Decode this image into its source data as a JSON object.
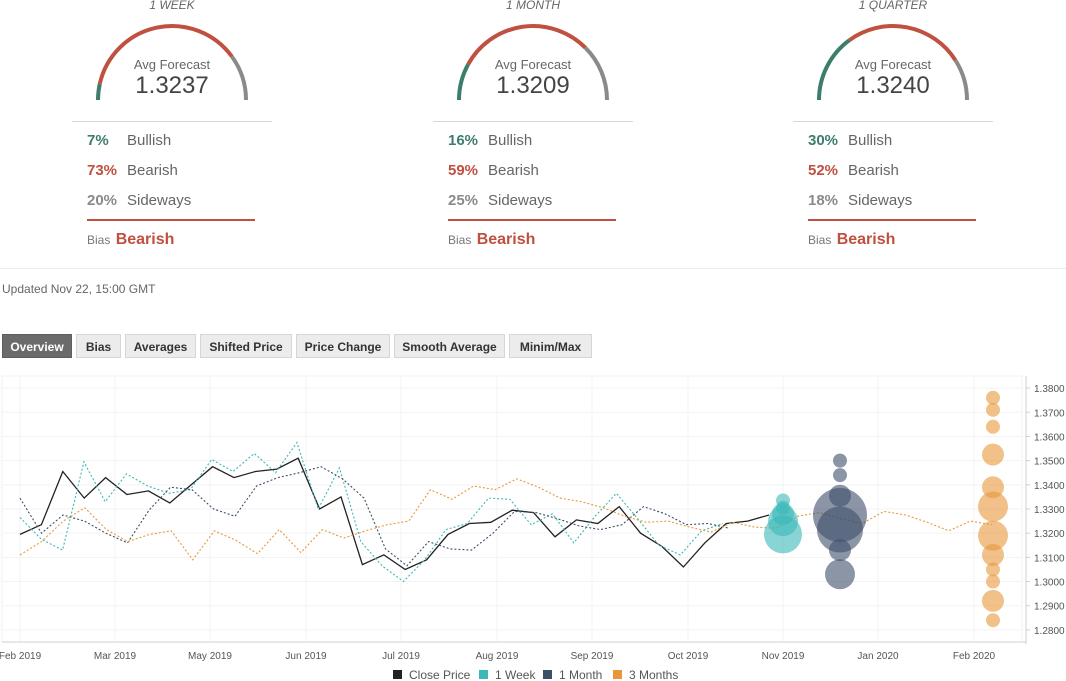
{
  "panels": [
    {
      "period": "1 WEEK",
      "avg_label": "Avg Forecast",
      "avg_value": "1.3237",
      "bullish_pct": "7%",
      "bullish_label": "Bullish",
      "bearish_pct": "73%",
      "bearish_label": "Bearish",
      "sideways_pct": "20%",
      "sideways_label": "Sideways",
      "bias_label": "Bias",
      "bias_value": "Bearish",
      "bullish": 7,
      "bearish": 73,
      "sideways": 20
    },
    {
      "period": "1 MONTH",
      "avg_label": "Avg Forecast",
      "avg_value": "1.3209",
      "bullish_pct": "16%",
      "bullish_label": "Bullish",
      "bearish_pct": "59%",
      "bearish_label": "Bearish",
      "sideways_pct": "25%",
      "sideways_label": "Sideways",
      "bias_label": "Bias",
      "bias_value": "Bearish",
      "bullish": 16,
      "bearish": 59,
      "sideways": 25
    },
    {
      "period": "1 QUARTER",
      "avg_label": "Avg Forecast",
      "avg_value": "1.3240",
      "bullish_pct": "30%",
      "bullish_label": "Bullish",
      "bearish_pct": "52%",
      "bearish_label": "Bearish",
      "sideways_pct": "18%",
      "sideways_label": "Sideways",
      "bias_label": "Bias",
      "bias_value": "Bearish",
      "bullish": 30,
      "bearish": 52,
      "sideways": 18
    }
  ],
  "colors": {
    "bullish": "#3d7d6e",
    "bearish": "#c0503f",
    "sideways": "#8a8a8a",
    "close": "#222222",
    "week": "#3bb8b8",
    "month": "#3d4f6b",
    "quarter": "#e8973a"
  },
  "updated": "Updated Nov 22, 15:00 GMT",
  "tabs": [
    "Overview",
    "Bias",
    "Averages",
    "Shifted Price",
    "Price Change",
    "Smooth Average",
    "Minim/Max"
  ],
  "active_tab": "Overview",
  "chart_data": {
    "type": "line",
    "x_ticks": [
      "Feb 2019",
      "Mar 2019",
      "May 2019",
      "Jun 2019",
      "Jul 2019",
      "Aug 2019",
      "Sep 2019",
      "Oct 2019",
      "Nov 2019",
      "Jan 2020",
      "Feb 2020"
    ],
    "y_ticks": [
      "1.3800",
      "1.3700",
      "1.3600",
      "1.3500",
      "1.3400",
      "1.3300",
      "1.3200",
      "1.3100",
      "1.3000",
      "1.2900",
      "1.2800"
    ],
    "ylim": [
      1.275,
      1.385
    ],
    "legend": [
      "Close Price",
      "1 Week",
      "1 Month",
      "3 Months"
    ],
    "legend_position": "bottom",
    "series": [
      {
        "name": "Close Price",
        "style": "solid",
        "values": [
          [
            0,
            1.3195
          ],
          [
            1,
            1.3235
          ],
          [
            2,
            1.3455
          ],
          [
            3,
            1.3345
          ],
          [
            4,
            1.343
          ],
          [
            5,
            1.336
          ],
          [
            6,
            1.3375
          ],
          [
            7,
            1.3325
          ],
          [
            8,
            1.34
          ],
          [
            9,
            1.3475
          ],
          [
            10,
            1.343
          ],
          [
            11,
            1.3455
          ],
          [
            12,
            1.3465
          ],
          [
            13,
            1.351
          ],
          [
            14,
            1.33
          ],
          [
            15,
            1.335
          ],
          [
            16,
            1.307
          ],
          [
            17,
            1.311
          ],
          [
            18,
            1.305
          ],
          [
            19,
            1.309
          ],
          [
            20,
            1.3195
          ],
          [
            21,
            1.324
          ],
          [
            22,
            1.3245
          ],
          [
            23,
            1.3295
          ],
          [
            24,
            1.3285
          ],
          [
            25,
            1.3185
          ],
          [
            26,
            1.3255
          ],
          [
            27,
            1.324
          ],
          [
            28,
            1.331
          ],
          [
            29,
            1.32
          ],
          [
            30,
            1.3145
          ],
          [
            31,
            1.306
          ],
          [
            32,
            1.316
          ],
          [
            33,
            1.324
          ],
          [
            34,
            1.325
          ],
          [
            35,
            1.3275
          ]
        ]
      },
      {
        "name": "1 Week",
        "style": "dotted",
        "values": [
          [
            0,
            1.3265
          ],
          [
            1,
            1.3175
          ],
          [
            2,
            1.313
          ],
          [
            3,
            1.3495
          ],
          [
            4,
            1.333
          ],
          [
            5,
            1.3445
          ],
          [
            6,
            1.3395
          ],
          [
            7,
            1.3365
          ],
          [
            8,
            1.338
          ],
          [
            9,
            1.3505
          ],
          [
            10,
            1.3455
          ],
          [
            11,
            1.353
          ],
          [
            12,
            1.345
          ],
          [
            13,
            1.3575
          ],
          [
            14,
            1.33
          ],
          [
            15,
            1.347
          ],
          [
            16,
            1.3165
          ],
          [
            17,
            1.3065
          ],
          [
            18,
            1.3
          ],
          [
            19,
            1.309
          ],
          [
            20,
            1.3215
          ],
          [
            21,
            1.324
          ],
          [
            22,
            1.3345
          ],
          [
            23,
            1.334
          ],
          [
            24,
            1.3235
          ],
          [
            25,
            1.328
          ],
          [
            26,
            1.316
          ],
          [
            27,
            1.327
          ],
          [
            28,
            1.3365
          ],
          [
            29,
            1.326
          ],
          [
            30,
            1.315
          ],
          [
            31,
            1.311
          ],
          [
            32,
            1.321
          ],
          [
            33,
            1.324
          ]
        ]
      },
      {
        "name": "1 Month",
        "style": "dotted",
        "values": [
          [
            0,
            1.3345
          ],
          [
            1,
            1.32
          ],
          [
            2,
            1.3275
          ],
          [
            3,
            1.325
          ],
          [
            4,
            1.32
          ],
          [
            5,
            1.316
          ],
          [
            6,
            1.3295
          ],
          [
            7,
            1.339
          ],
          [
            8,
            1.338
          ],
          [
            9,
            1.33
          ],
          [
            10,
            1.327
          ],
          [
            11,
            1.3395
          ],
          [
            12,
            1.343
          ],
          [
            13,
            1.345
          ],
          [
            14,
            1.3475
          ],
          [
            15,
            1.3425
          ],
          [
            16,
            1.3345
          ],
          [
            17,
            1.3135
          ],
          [
            18,
            1.3065
          ],
          [
            19,
            1.3165
          ],
          [
            20,
            1.3135
          ],
          [
            21,
            1.313
          ],
          [
            22,
            1.32
          ],
          [
            23,
            1.329
          ],
          [
            24,
            1.3285
          ],
          [
            25,
            1.326
          ],
          [
            26,
            1.323
          ],
          [
            27,
            1.3215
          ],
          [
            28,
            1.3235
          ],
          [
            29,
            1.331
          ],
          [
            30,
            1.328
          ],
          [
            31,
            1.3235
          ],
          [
            32,
            1.324
          ],
          [
            33,
            1.322
          ]
        ]
      },
      {
        "name": "3 Months",
        "style": "dotted",
        "values": [
          [
            0,
            1.311
          ],
          [
            1,
            1.3165
          ],
          [
            2,
            1.325
          ],
          [
            3,
            1.3305
          ],
          [
            4,
            1.3215
          ],
          [
            5,
            1.3165
          ],
          [
            6,
            1.3195
          ],
          [
            7,
            1.321
          ],
          [
            8,
            1.309
          ],
          [
            9,
            1.321
          ],
          [
            10,
            1.317
          ],
          [
            11,
            1.3115
          ],
          [
            12,
            1.3215
          ],
          [
            13,
            1.312
          ],
          [
            14,
            1.3215
          ],
          [
            15,
            1.318
          ],
          [
            16,
            1.321
          ],
          [
            17,
            1.3235
          ],
          [
            18,
            1.325
          ],
          [
            19,
            1.338
          ],
          [
            20,
            1.334
          ],
          [
            21,
            1.3395
          ],
          [
            22,
            1.338
          ],
          [
            23,
            1.3425
          ],
          [
            24,
            1.339
          ],
          [
            25,
            1.3345
          ],
          [
            26,
            1.333
          ],
          [
            27,
            1.3305
          ],
          [
            28,
            1.327
          ],
          [
            29,
            1.3245
          ],
          [
            30,
            1.325
          ],
          [
            31,
            1.3225
          ],
          [
            32,
            1.3205
          ],
          [
            33,
            1.3245
          ],
          [
            34,
            1.3225
          ],
          [
            35,
            1.322
          ],
          [
            36,
            1.327
          ],
          [
            37,
            1.3285
          ],
          [
            38,
            1.326
          ],
          [
            39,
            1.324
          ],
          [
            40,
            1.329
          ],
          [
            41,
            1.3275
          ],
          [
            42,
            1.3245
          ],
          [
            43,
            1.321
          ],
          [
            44,
            1.325
          ],
          [
            45,
            1.3235
          ]
        ]
      }
    ],
    "forecast_points": [
      {
        "name": "1 Week",
        "color": "#3bb8b8",
        "points": [
          [
            1.3195,
            4
          ],
          [
            1.325,
            3
          ],
          [
            1.328,
            2
          ],
          [
            1.3305,
            1
          ],
          [
            1.3335,
            1
          ]
        ]
      },
      {
        "name": "1 Month",
        "color": "#3d4f6b",
        "points": [
          [
            1.303,
            3
          ],
          [
            1.313,
            2
          ],
          [
            1.3215,
            5
          ],
          [
            1.3275,
            6
          ],
          [
            1.3355,
            2
          ],
          [
            1.344,
            1
          ],
          [
            1.35,
            1
          ]
        ]
      },
      {
        "name": "3 Months",
        "color": "#e8973a",
        "points": [
          [
            1.284,
            1
          ],
          [
            1.292,
            2
          ],
          [
            1.3,
            1
          ],
          [
            1.305,
            1
          ],
          [
            1.311,
            2
          ],
          [
            1.319,
            3
          ],
          [
            1.331,
            3
          ],
          [
            1.339,
            2
          ],
          [
            1.3525,
            2
          ],
          [
            1.364,
            1
          ],
          [
            1.371,
            1
          ],
          [
            1.376,
            1
          ]
        ]
      }
    ]
  }
}
